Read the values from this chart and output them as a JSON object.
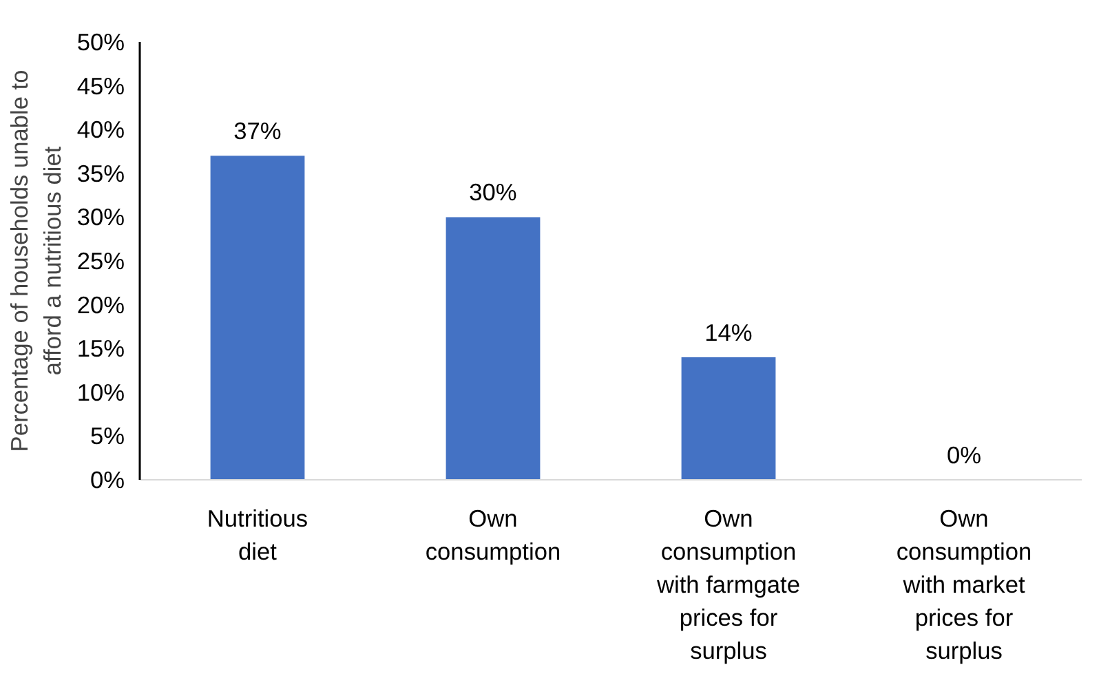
{
  "chart_data": {
    "type": "bar",
    "ylabel": "Percentage of households unable to afford a nutritious diet",
    "categories": [
      "Nutritious diet",
      "Own consumption",
      "Own consumption with farmgate prices for surplus",
      "Own consumption with market prices for surplus"
    ],
    "values": [
      37,
      30,
      14,
      0
    ],
    "value_labels": [
      "37%",
      "30%",
      "14%",
      "0%"
    ],
    "color": "#4472c4",
    "ylim": [
      0,
      50
    ],
    "yticks": [
      {
        "value": 0,
        "label": "0%"
      },
      {
        "value": 5,
        "label": "5%"
      },
      {
        "value": 10,
        "label": "10%"
      },
      {
        "value": 15,
        "label": "15%"
      },
      {
        "value": 20,
        "label": "20%"
      },
      {
        "value": 25,
        "label": "25%"
      },
      {
        "value": 30,
        "label": "30%"
      },
      {
        "value": 35,
        "label": "35%"
      },
      {
        "value": 40,
        "label": "40%"
      },
      {
        "value": 45,
        "label": "45%"
      },
      {
        "value": 50,
        "label": "50%"
      }
    ],
    "grid": false
  }
}
